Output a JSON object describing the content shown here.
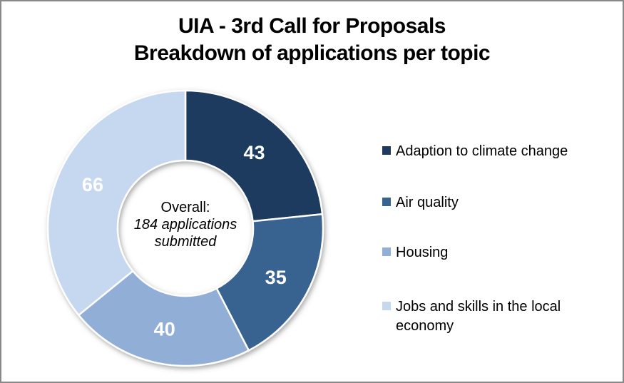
{
  "frame": {
    "background": "#ffffff",
    "border_color": "#898989"
  },
  "title": {
    "line1": "UIA - 3rd Call for Proposals",
    "line2": "Breakdown of applications per topic"
  },
  "chart_data": {
    "type": "pie",
    "subtype": "donut",
    "title": "UIA - 3rd Call for Proposals",
    "subtitle": "Breakdown of applications per topic",
    "categories": [
      "Adaption to climate change",
      "Air quality",
      "Housing",
      "Jobs and skills in the local economy"
    ],
    "values": [
      43,
      35,
      40,
      66
    ],
    "colors": [
      "#1F3A5F",
      "#376391",
      "#91AFD6",
      "#C6D8EF"
    ],
    "total": 184,
    "center_label": {
      "line1": "Overall:",
      "line2": "184 applications submitted"
    },
    "data_label_color": "#ffffff",
    "separator_color": "#ffffff",
    "legend_position": "right",
    "start_angle_deg": 0,
    "direction": "clockwise",
    "inner_radius_ratio": 0.49
  }
}
